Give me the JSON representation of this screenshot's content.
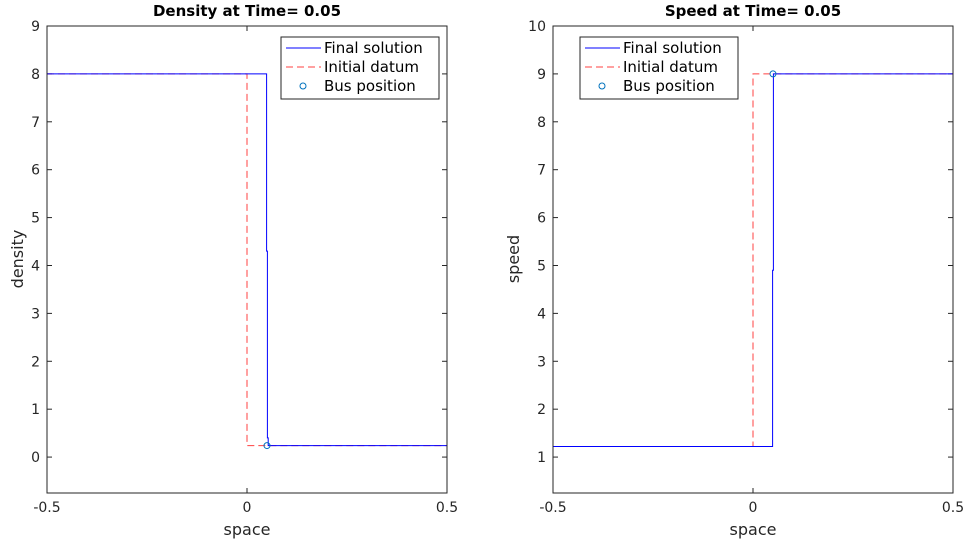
{
  "chart_data": [
    {
      "type": "line",
      "title": "Density at Time= 0.05",
      "xlabel": "space",
      "ylabel": "density",
      "xlim": [
        -0.5,
        0.5
      ],
      "ylim": [
        -0.75,
        9
      ],
      "xticks": [
        "-0.5",
        "0",
        "0.5"
      ],
      "xtick_values": [
        -0.5,
        0,
        0.5
      ],
      "yticks": [
        "0",
        "1",
        "2",
        "3",
        "4",
        "5",
        "6",
        "7",
        "8",
        "9"
      ],
      "ytick_values": [
        0,
        1,
        2,
        3,
        4,
        5,
        6,
        7,
        8,
        9
      ],
      "legend_position": "top-right",
      "series": [
        {
          "name": "Final solution",
          "color": "#0000ff",
          "style": "solid",
          "x": [
            -0.5,
            0.049,
            0.049,
            0.051,
            0.051,
            0.053,
            0.053,
            0.5
          ],
          "y": [
            8,
            8,
            4.3,
            4.3,
            0.4,
            0.4,
            0.24,
            0.24
          ]
        },
        {
          "name": "Initial datum",
          "color": "#ff0000",
          "style": "dashed",
          "x": [
            -0.5,
            0,
            0,
            0.5
          ],
          "y": [
            8,
            8,
            0.24,
            0.24
          ]
        },
        {
          "name": "Bus position",
          "color": "#0072bd",
          "style": "marker",
          "x": [
            0.05
          ],
          "y": [
            0.24
          ]
        }
      ]
    },
    {
      "type": "line",
      "title": "Speed at Time= 0.05",
      "xlabel": "space",
      "ylabel": "speed",
      "xlim": [
        -0.5,
        0.5
      ],
      "ylim": [
        0.25,
        10
      ],
      "xticks": [
        "-0.5",
        "0",
        "0.5"
      ],
      "xtick_values": [
        -0.5,
        0,
        0.5
      ],
      "yticks": [
        "1",
        "2",
        "3",
        "4",
        "5",
        "6",
        "7",
        "8",
        "9",
        "10"
      ],
      "ytick_values": [
        1,
        2,
        3,
        4,
        5,
        6,
        7,
        8,
        9,
        10
      ],
      "legend_position": "top-left",
      "series": [
        {
          "name": "Final solution",
          "color": "#0000ff",
          "style": "solid",
          "x": [
            -0.5,
            0.049,
            0.049,
            0.051,
            0.051,
            0.5
          ],
          "y": [
            1.22,
            1.22,
            4.9,
            4.9,
            9,
            9
          ]
        },
        {
          "name": "Initial datum",
          "color": "#ff0000",
          "style": "dashed",
          "x": [
            -0.5,
            0,
            0,
            0.5
          ],
          "y": [
            1.22,
            1.22,
            9,
            9
          ]
        },
        {
          "name": "Bus position",
          "color": "#0072bd",
          "style": "marker",
          "x": [
            0.05
          ],
          "y": [
            9
          ]
        }
      ]
    }
  ]
}
